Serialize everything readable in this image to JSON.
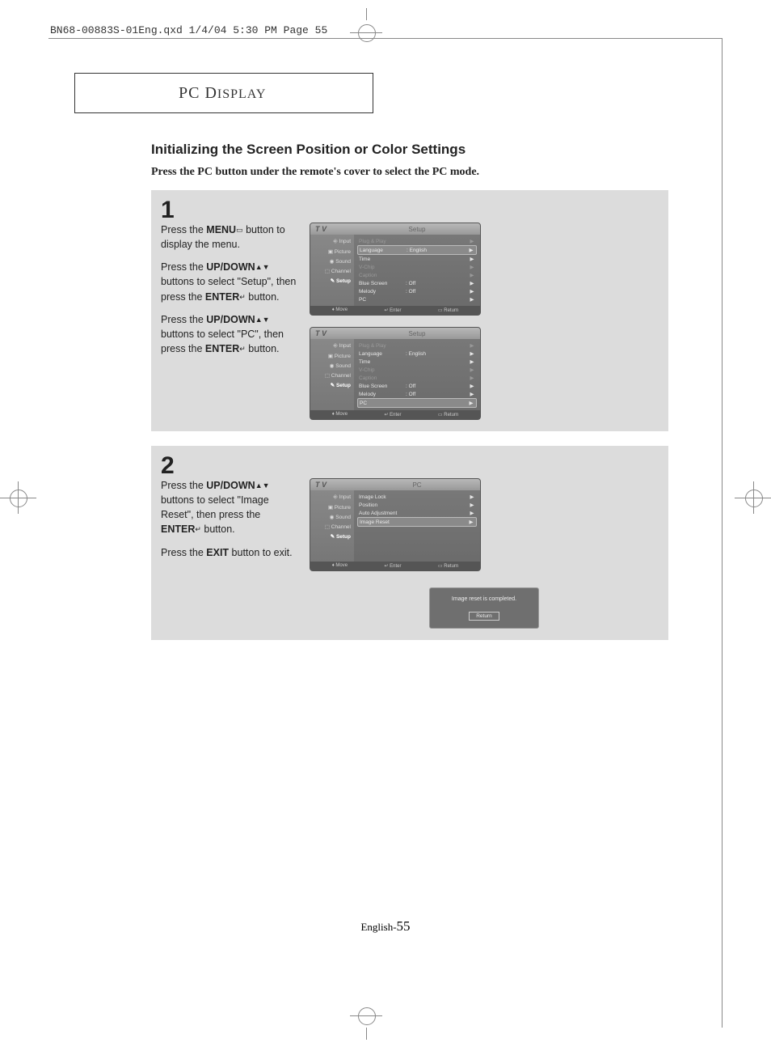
{
  "file_header": "BN68-00883S-01Eng.qxd  1/4/04 5:30 PM  Page 55",
  "title_box": "PC Display",
  "heading": "Initializing the Screen Position or Color Settings",
  "subheading": "Press the PC button under the remote's cover to select the PC mode.",
  "step1": {
    "num": "1",
    "para1a": "Press the ",
    "para1b": "MENU",
    "para1c": " button to display the menu.",
    "para2a": "Press the ",
    "para2b": "UP/DOWN",
    "para2c": " buttons to select \"Setup\", then press the ",
    "para2d": "ENTER",
    "para2e": " button.",
    "para3a": "Press the ",
    "para3b": "UP/DOWN",
    "para3c": " buttons to select \"PC\", then press the ",
    "para3d": "ENTER",
    "para3e": " button."
  },
  "step2": {
    "num": "2",
    "para1a": "Press the ",
    "para1b": "UP/DOWN",
    "para1c": " buttons to select \"Image Reset\", then press the ",
    "para1d": "ENTER",
    "para1e": " button.",
    "para2a": "Press the ",
    "para2b": "EXIT",
    "para2c": " button to exit."
  },
  "sidebar_items": [
    "Input",
    "Picture",
    "Sound",
    "Channel",
    "Setup"
  ],
  "menu1": {
    "header_left": "T V",
    "header_right": "Setup",
    "rows": [
      {
        "label": "Plug & Play",
        "value": "",
        "arrow": "▶",
        "dim": true
      },
      {
        "label": "Language",
        "value": ": English",
        "arrow": "▶",
        "hl": true
      },
      {
        "label": "Time",
        "value": "",
        "arrow": "▶"
      },
      {
        "label": "V-Chip",
        "value": "",
        "arrow": "▶",
        "dim": true
      },
      {
        "label": "Caption",
        "value": "",
        "arrow": "▶",
        "dim": true
      },
      {
        "label": "Blue Screen",
        "value": ": Off",
        "arrow": "▶"
      },
      {
        "label": "Melody",
        "value": ": Off",
        "arrow": "▶"
      },
      {
        "label": "PC",
        "value": "",
        "arrow": "▶"
      }
    ],
    "footer": {
      "move": "Move",
      "enter": "Enter",
      "return": "Return"
    }
  },
  "menu2": {
    "header_left": "T V",
    "header_right": "Setup",
    "rows": [
      {
        "label": "Plug & Play",
        "value": "",
        "arrow": "▶",
        "dim": true
      },
      {
        "label": "Language",
        "value": ": English",
        "arrow": "▶"
      },
      {
        "label": "Time",
        "value": "",
        "arrow": "▶"
      },
      {
        "label": "V-Chip",
        "value": "",
        "arrow": "▶",
        "dim": true
      },
      {
        "label": "Caption",
        "value": "",
        "arrow": "▶",
        "dim": true
      },
      {
        "label": "Blue Screen",
        "value": ": Off",
        "arrow": "▶"
      },
      {
        "label": "Melody",
        "value": ": Off",
        "arrow": "▶"
      },
      {
        "label": "PC",
        "value": "",
        "arrow": "▶",
        "hl": true
      }
    ],
    "footer": {
      "move": "Move",
      "enter": "Enter",
      "return": "Return"
    }
  },
  "menu3": {
    "header_left": "T V",
    "header_right": "PC",
    "rows": [
      {
        "label": "Image Lock",
        "value": "",
        "arrow": "▶"
      },
      {
        "label": "Position",
        "value": "",
        "arrow": "▶"
      },
      {
        "label": "Auto Adjustment",
        "value": "",
        "arrow": "▶"
      },
      {
        "label": "Image Reset",
        "value": "",
        "arrow": "▶",
        "hl": true
      }
    ],
    "footer": {
      "move": "Move",
      "enter": "Enter",
      "return": "Return"
    }
  },
  "popup": {
    "text": "Image reset is completed.",
    "button": "Return"
  },
  "page_footer_prefix": "English-",
  "page_footer_num": "55"
}
